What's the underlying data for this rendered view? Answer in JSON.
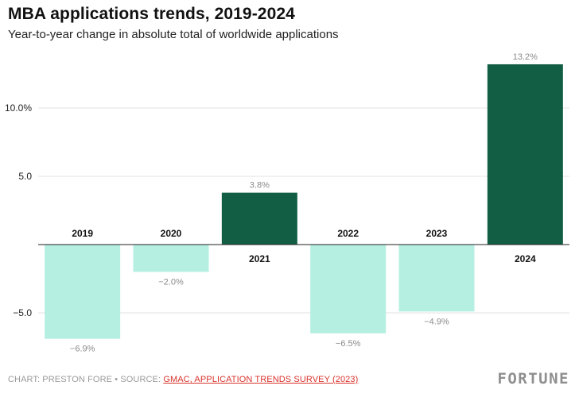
{
  "header": {
    "title": "MBA applications trends, 2019-2024",
    "subtitle": "Year-to-year change in absolute total of worldwide applications"
  },
  "chart_data": {
    "type": "bar",
    "title": "MBA applications trends, 2019-2024",
    "subtitle": "Year-to-year change in absolute total of worldwide applications",
    "categories": [
      "2019",
      "2020",
      "2021",
      "2022",
      "2023",
      "2024"
    ],
    "values": [
      -6.9,
      -2.0,
      3.8,
      -6.5,
      -4.9,
      13.2
    ],
    "value_labels": [
      "−6.9%",
      "−2.0%",
      "3.8%",
      "−6.5%",
      "−4.9%",
      "13.2%"
    ],
    "ylim": [
      -7.5,
      13.5
    ],
    "yticks": [
      -5,
      5,
      10
    ],
    "ytick_labels": [
      "−5.0",
      "5.0",
      "10.0%"
    ],
    "xlabel": "",
    "ylabel": "",
    "grid": true,
    "colors": {
      "positive": "#115e45",
      "negative": "#b5efe1",
      "grid": "#e3e3e3",
      "axis": "#222222"
    }
  },
  "footer": {
    "credit": "CHART: PRESTON FORE • SOURCE: ",
    "source_link": "GMAC, APPLICATION TRENDS SURVEY (2023)",
    "brand": "FORTUNE"
  }
}
